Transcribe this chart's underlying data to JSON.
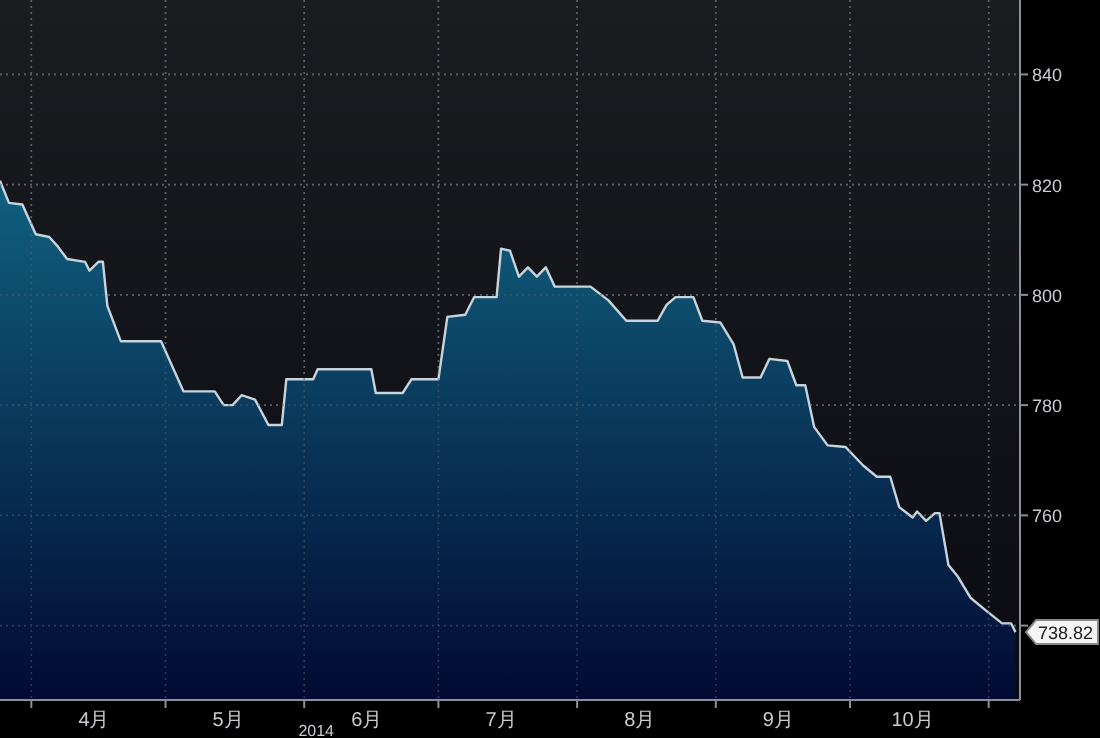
{
  "chart_data": {
    "type": "area",
    "x": [
      "2014-03-25",
      "2014-03-27",
      "2014-03-30",
      "2014-04-02",
      "2014-04-05",
      "2014-04-07",
      "2014-04-09",
      "2014-04-13",
      "2014-04-14",
      "2014-04-16",
      "2014-04-17",
      "2014-04-18",
      "2014-04-21",
      "2014-04-30",
      "2014-05-05",
      "2014-05-12",
      "2014-05-14",
      "2014-05-16",
      "2014-05-18",
      "2014-05-21",
      "2014-05-24",
      "2014-05-27",
      "2014-05-28",
      "2014-06-03",
      "2014-06-04",
      "2014-06-16",
      "2014-06-17",
      "2014-06-23",
      "2014-06-25",
      "2014-07-01",
      "2014-07-03",
      "2014-07-07",
      "2014-07-09",
      "2014-07-14",
      "2014-07-15",
      "2014-07-17",
      "2014-07-19",
      "2014-07-21",
      "2014-07-23",
      "2014-07-25",
      "2014-07-27",
      "2014-08-04",
      "2014-08-08",
      "2014-08-12",
      "2014-08-19",
      "2014-08-21",
      "2014-08-23",
      "2014-08-27",
      "2014-08-29",
      "2014-09-02",
      "2014-09-05",
      "2014-09-07",
      "2014-09-11",
      "2014-09-13",
      "2014-09-17",
      "2014-09-19",
      "2014-09-21",
      "2014-09-23",
      "2014-09-26",
      "2014-09-30",
      "2014-10-04",
      "2014-10-07",
      "2014-10-10",
      "2014-10-12",
      "2014-10-15",
      "2014-10-16",
      "2014-10-18",
      "2014-10-20",
      "2014-10-21",
      "2014-10-23",
      "2014-10-25",
      "2014-10-28",
      "2014-10-31",
      "2014-11-04",
      "2014-11-06",
      "2014-11-07"
    ],
    "series": [
      {
        "color": "#c8d4dc",
        "values": [
          820.7,
          816.7,
          816.4,
          811,
          810.5,
          808.7,
          806.5,
          806,
          804.4,
          806,
          806,
          798,
          791.6,
          791.6,
          782.5,
          782.5,
          780,
          780,
          781.8,
          781,
          776.4,
          776.4,
          784.7,
          784.7,
          786.5,
          786.5,
          782.2,
          782.2,
          784.7,
          784.7,
          796,
          796.4,
          799.6,
          799.6,
          808.4,
          808,
          803.3,
          805,
          803.3,
          805,
          801.5,
          801.5,
          799,
          795.3,
          795.3,
          798.2,
          799.6,
          799.6,
          795.3,
          795,
          791,
          785,
          785,
          788.4,
          788,
          783.6,
          783.6,
          776,
          772.7,
          772.4,
          769,
          767,
          767,
          761.5,
          759.6,
          760.7,
          759,
          760.4,
          760.4,
          751,
          749,
          745,
          743,
          740.4,
          740.4,
          738.82
        ]
      }
    ],
    "xlim": [
      "2014-03-25",
      "2014-11-08"
    ],
    "xticks": [
      {
        "value": "2014-04-01",
        "label": null
      },
      {
        "value": "2014-04-15",
        "label": "4月"
      },
      {
        "value": "2014-05-01",
        "label": null
      },
      {
        "value": "2014-05-15",
        "label": "5月"
      },
      {
        "value": "2014-06-01",
        "label": null
      },
      {
        "value": "2014-06-15",
        "label": "6月"
      },
      {
        "value": "2014-07-01",
        "label": null
      },
      {
        "value": "2014-07-15",
        "label": "7月"
      },
      {
        "value": "2014-08-01",
        "label": null
      },
      {
        "value": "2014-08-15",
        "label": "8月"
      },
      {
        "value": "2014-09-01",
        "label": null
      },
      {
        "value": "2014-09-15",
        "label": "9月"
      },
      {
        "value": "2014-10-01",
        "label": null
      },
      {
        "value": "2014-10-15",
        "label": "10月"
      },
      {
        "value": "2014-11-01",
        "label": null
      }
    ],
    "ylim": [
      726.5,
      853.5
    ],
    "yticks": [
      {
        "value": 740,
        "label": null
      },
      760,
      780,
      800,
      820,
      840
    ],
    "grid": true,
    "annotations": [
      "2014",
      {
        "text": "738.82",
        "x": "2014-11-07",
        "y": 738.82
      }
    ]
  }
}
